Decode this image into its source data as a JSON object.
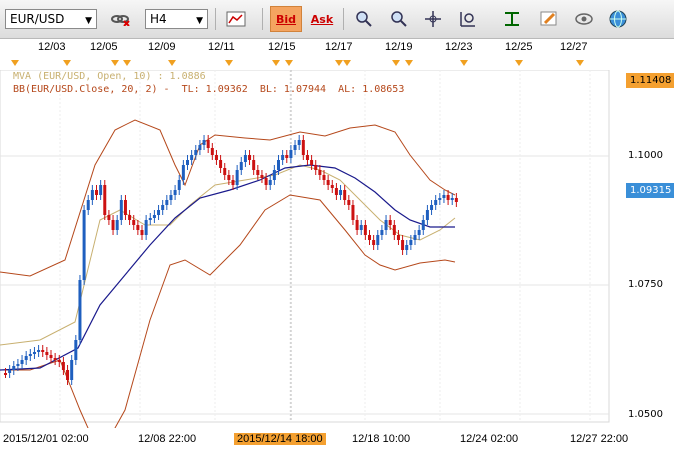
{
  "toolbar": {
    "symbol": "EUR/USD",
    "timeframe": "H4",
    "bid_label": "Bid",
    "ask_label": "Ask"
  },
  "top_dates": [
    "12/03",
    "12/05",
    "12/09",
    "12/11",
    "12/15",
    "12/17",
    "12/19",
    "12/23",
    "12/25",
    "12/27"
  ],
  "legend": {
    "mva": "MVA (EUR/USD, Open, 10) : 1.0886",
    "bb": "BB(EUR/USD.Close, 20, 2) -  TL: 1.09362  BL: 1.07944  AL: 1.08653"
  },
  "price_axis": {
    "labels": [
      "1.1000",
      "1.0750",
      "1.0500"
    ],
    "high_badge": "1.11408",
    "current_badge": "1.09315"
  },
  "bottom_dates": [
    "2015/12/01 02:00",
    "12/08 22:00",
    "2015/12/14 18:00",
    "12/18 10:00",
    "12/24 02:00",
    "12/27 22:00"
  ],
  "colors": {
    "bull": "#1f5fbf",
    "bear": "#cc1111",
    "bb_band": "#b5481b",
    "ma_blue": "#1a1a8c",
    "mva": "#c8b070",
    "accent": "#f4a030"
  },
  "chart_data": {
    "type": "candlestick",
    "ylim": [
      1.05,
      1.115
    ],
    "indicators": [
      "MVA(10, Open)",
      "Bollinger Bands(20, 2)"
    ]
  }
}
